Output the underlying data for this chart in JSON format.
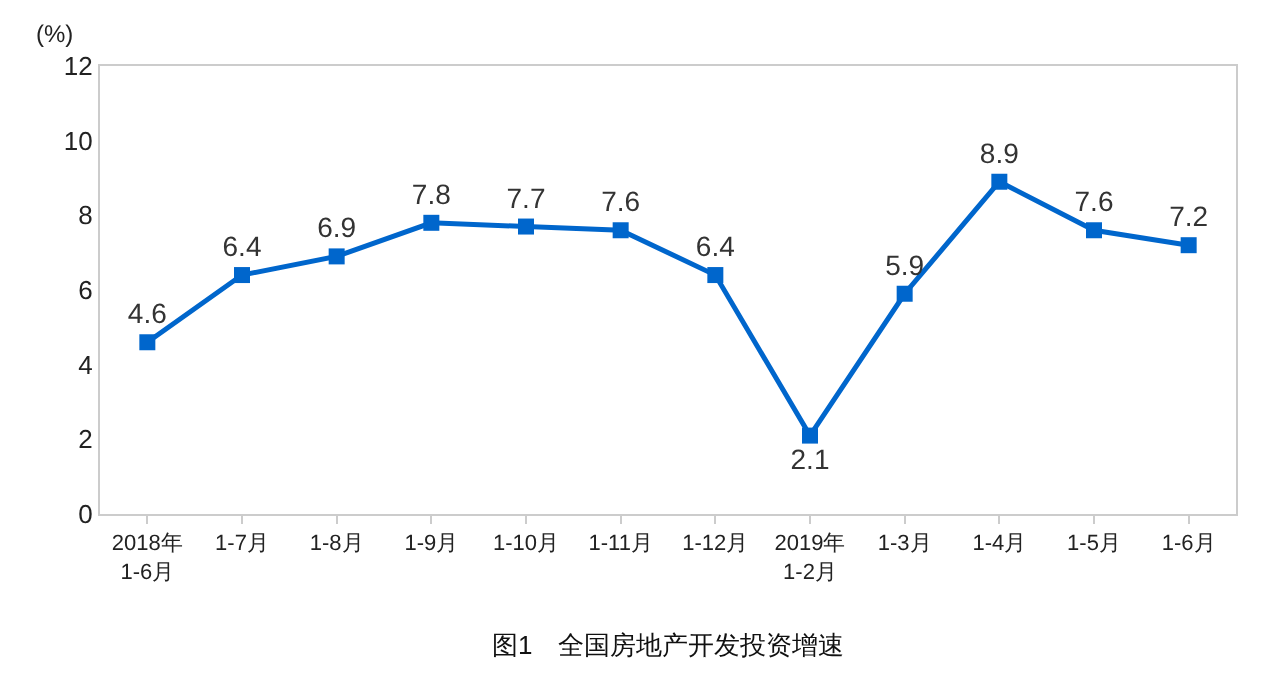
{
  "chart_data": {
    "type": "line",
    "title": "图1　全国房地产开发投资增速",
    "ylabel": "(%)",
    "categories": [
      "2018年\n1-6月",
      "1-7月",
      "1-8月",
      "1-9月",
      "1-10月",
      "1-11月",
      "1-12月",
      "2019年\n1-2月",
      "1-3月",
      "1-4月",
      "1-5月",
      "1-6月"
    ],
    "series": [
      {
        "color": "#0066cc",
        "values": [
          4.6,
          6.4,
          6.9,
          7.8,
          7.7,
          7.6,
          6.4,
          2.1,
          5.9,
          8.9,
          7.6,
          7.2
        ]
      }
    ],
    "ylim": [
      0,
      12
    ],
    "yticks": [
      0,
      2,
      4,
      6,
      8,
      10,
      12
    ],
    "grid": false,
    "legend": false,
    "marker": "square",
    "line_style": "solid",
    "data_labels": true
  }
}
